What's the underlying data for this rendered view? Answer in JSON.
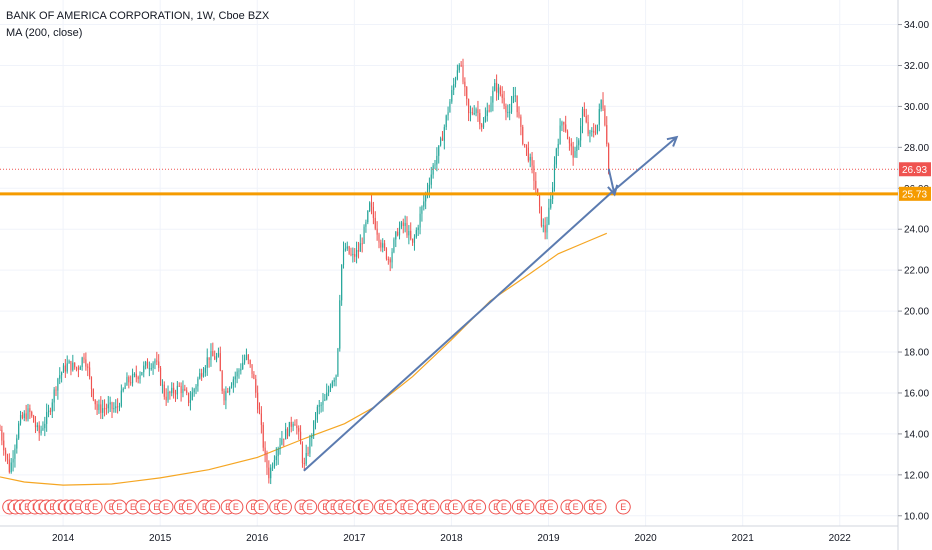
{
  "header": {
    "title": "BANK OF AMERICA CORPORATION, 1W, Cboe BZX",
    "indicator": "MA (200, close)"
  },
  "colors": {
    "up": "#26a69a",
    "down": "#ef5350",
    "ma": "#f5a623",
    "support": "#f59b00",
    "trendline": "#5b7bb0",
    "grid": "#f0f3fa",
    "last_price_line": "#ef5350"
  },
  "chart_data": {
    "type": "candlestick",
    "title": "BANK OF AMERICA CORPORATION, 1W, Cboe BZX",
    "ylim": [
      9.5,
      35.2
    ],
    "xlim": [
      2013.35,
      2022.6
    ],
    "y_ticks": [
      "10.00",
      "12.00",
      "14.00",
      "16.00",
      "18.00",
      "20.00",
      "22.00",
      "24.00",
      "26.00",
      "28.00",
      "30.00",
      "32.00",
      "34.00"
    ],
    "x_ticks": [
      {
        "x": 2014,
        "label": "2014"
      },
      {
        "x": 2015,
        "label": "2015"
      },
      {
        "x": 2016,
        "label": "2016"
      },
      {
        "x": 2017,
        "label": "2017"
      },
      {
        "x": 2018,
        "label": "2018"
      },
      {
        "x": 2019,
        "label": "2019"
      },
      {
        "x": 2020,
        "label": "2020"
      },
      {
        "x": 2021,
        "label": "2021"
      },
      {
        "x": 2022,
        "label": "2022"
      }
    ],
    "price_path": [
      [
        2013.35,
        14.2
      ],
      [
        2013.45,
        12.2
      ],
      [
        2013.55,
        14.6
      ],
      [
        2013.65,
        15.1
      ],
      [
        2013.75,
        14.0
      ],
      [
        2013.85,
        15.0
      ],
      [
        2013.95,
        16.8
      ],
      [
        2014.05,
        17.4
      ],
      [
        2014.15,
        17.2
      ],
      [
        2014.22,
        17.9
      ],
      [
        2014.28,
        16.5
      ],
      [
        2014.35,
        15.2
      ],
      [
        2014.45,
        15.3
      ],
      [
        2014.55,
        15.2
      ],
      [
        2014.65,
        16.5
      ],
      [
        2014.75,
        16.8
      ],
      [
        2014.85,
        17.3
      ],
      [
        2014.95,
        17.6
      ],
      [
        2015.05,
        15.8
      ],
      [
        2015.12,
        16.0
      ],
      [
        2015.2,
        16.3
      ],
      [
        2015.3,
        15.6
      ],
      [
        2015.4,
        16.8
      ],
      [
        2015.5,
        17.8
      ],
      [
        2015.6,
        17.7
      ],
      [
        2015.65,
        15.8
      ],
      [
        2015.72,
        16.5
      ],
      [
        2015.8,
        17.0
      ],
      [
        2015.88,
        17.8
      ],
      [
        2015.95,
        17.0
      ],
      [
        2016.02,
        15.0
      ],
      [
        2016.08,
        12.8
      ],
      [
        2016.12,
        12.0
      ],
      [
        2016.18,
        13.0
      ],
      [
        2016.25,
        13.8
      ],
      [
        2016.32,
        14.2
      ],
      [
        2016.38,
        14.8
      ],
      [
        2016.44,
        13.6
      ],
      [
        2016.48,
        12.3
      ],
      [
        2016.55,
        13.8
      ],
      [
        2016.62,
        15.2
      ],
      [
        2016.7,
        15.6
      ],
      [
        2016.76,
        16.6
      ],
      [
        2016.82,
        17.0
      ],
      [
        2016.86,
        22.0
      ],
      [
        2016.9,
        23.1
      ],
      [
        2016.98,
        22.6
      ],
      [
        2017.05,
        23.0
      ],
      [
        2017.12,
        24.2
      ],
      [
        2017.16,
        25.2
      ],
      [
        2017.2,
        24.5
      ],
      [
        2017.28,
        23.2
      ],
      [
        2017.36,
        22.5
      ],
      [
        2017.45,
        24.0
      ],
      [
        2017.52,
        24.2
      ],
      [
        2017.6,
        23.2
      ],
      [
        2017.68,
        24.7
      ],
      [
        2017.75,
        26.0
      ],
      [
        2017.82,
        27.2
      ],
      [
        2017.88,
        28.0
      ],
      [
        2017.95,
        29.5
      ],
      [
        2018.02,
        31.0
      ],
      [
        2018.08,
        32.3
      ],
      [
        2018.12,
        31.2
      ],
      [
        2018.18,
        29.5
      ],
      [
        2018.25,
        30.0
      ],
      [
        2018.32,
        29.0
      ],
      [
        2018.4,
        30.2
      ],
      [
        2018.45,
        31.0
      ],
      [
        2018.52,
        30.5
      ],
      [
        2018.6,
        29.5
      ],
      [
        2018.65,
        30.8
      ],
      [
        2018.72,
        28.6
      ],
      [
        2018.8,
        27.5
      ],
      [
        2018.86,
        26.3
      ],
      [
        2018.92,
        24.5
      ],
      [
        2018.96,
        23.8
      ],
      [
        2019.02,
        25.2
      ],
      [
        2019.08,
        28.0
      ],
      [
        2019.15,
        29.5
      ],
      [
        2019.22,
        28.0
      ],
      [
        2019.28,
        27.5
      ],
      [
        2019.35,
        29.8
      ],
      [
        2019.42,
        28.5
      ],
      [
        2019.5,
        29.0
      ],
      [
        2019.55,
        30.5
      ],
      [
        2019.58,
        29.4
      ],
      [
        2019.62,
        26.9
      ]
    ],
    "ma_200": [
      [
        2013.35,
        11.9
      ],
      [
        2013.6,
        11.65
      ],
      [
        2014.0,
        11.5
      ],
      [
        2014.5,
        11.55
      ],
      [
        2015.0,
        11.85
      ],
      [
        2015.5,
        12.25
      ],
      [
        2016.0,
        12.85
      ],
      [
        2016.5,
        13.8
      ],
      [
        2016.9,
        14.5
      ],
      [
        2017.2,
        15.3
      ],
      [
        2017.6,
        16.8
      ],
      [
        2018.0,
        18.6
      ],
      [
        2018.4,
        20.5
      ],
      [
        2018.8,
        21.8
      ],
      [
        2019.1,
        22.8
      ],
      [
        2019.4,
        23.4
      ],
      [
        2019.6,
        23.8
      ]
    ],
    "last_price": 26.93,
    "last_price_label": "26.93",
    "support_level": 25.73,
    "support_label": "25.73",
    "trendline": [
      [
        2016.48,
        12.2
      ],
      [
        2019.65,
        25.8
      ]
    ],
    "projection_arrow": [
      [
        2019.65,
        25.8
      ],
      [
        2020.32,
        28.5
      ]
    ],
    "pullback_arrow": [
      [
        2019.62,
        26.95
      ],
      [
        2019.68,
        25.7
      ]
    ],
    "earnings_marker_label": "E",
    "earnings_markers": [
      2013.45,
      2013.51,
      2013.57,
      2013.63,
      2013.71,
      2013.77,
      2013.83,
      2013.89,
      2013.97,
      2014.03,
      2014.09,
      2014.15,
      2014.25,
      2014.33,
      2014.5,
      2014.58,
      2014.72,
      2014.82,
      2014.96,
      2015.06,
      2015.22,
      2015.3,
      2015.46,
      2015.54,
      2015.7,
      2015.78,
      2015.96,
      2016.04,
      2016.2,
      2016.28,
      2016.46,
      2016.54,
      2016.7,
      2016.78,
      2016.86,
      2016.94,
      2017.06,
      2017.12,
      2017.28,
      2017.36,
      2017.5,
      2017.58,
      2017.72,
      2017.8,
      2017.96,
      2018.04,
      2018.2,
      2018.28,
      2018.46,
      2018.54,
      2018.7,
      2018.78,
      2018.94,
      2019.02,
      2019.2,
      2019.28,
      2019.44,
      2019.52,
      2019.77
    ]
  }
}
